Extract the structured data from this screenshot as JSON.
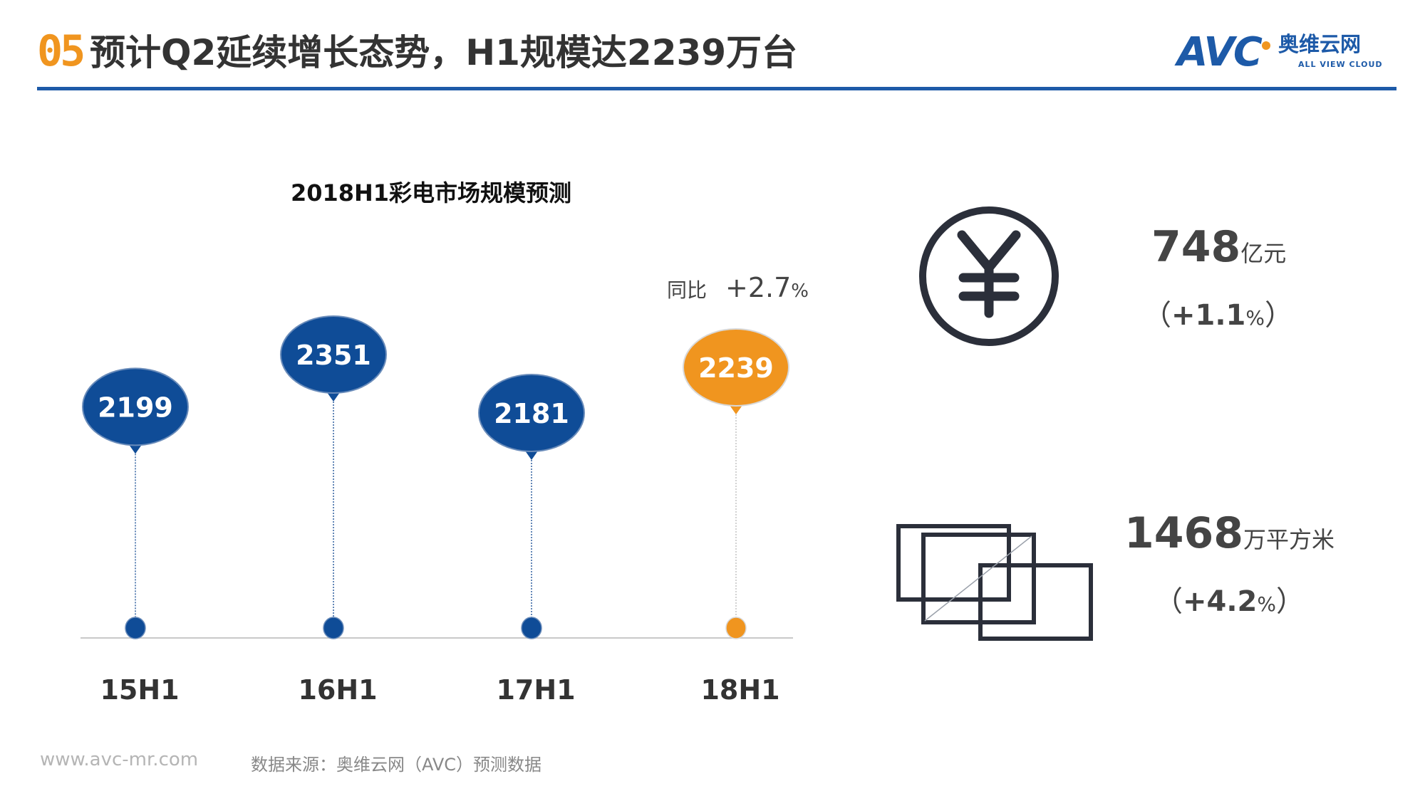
{
  "header": {
    "section_number": "05",
    "title": "预计Q2延续增长态势，H1规模达2239万台"
  },
  "logo": {
    "brand": "AVC",
    "name_cn": "奥维云网",
    "name_en": "ALL VIEW CLOUD"
  },
  "colors": {
    "accent_blue": "#0f4c97",
    "accent_orange": "#f0951f",
    "rule_blue": "#1d5aa8"
  },
  "chart_data": {
    "type": "bar",
    "title": "2018H1彩电市场规模预测",
    "categories": [
      "15H1",
      "16H1",
      "17H1",
      "18H1"
    ],
    "values": [
      2199,
      2351,
      2181,
      2239
    ],
    "highlight_index": 3,
    "annotation": {
      "label": "同比",
      "value": "+2.7",
      "unit": "%"
    }
  },
  "stats": [
    {
      "icon": "yen-icon",
      "value": "748",
      "unit": "亿元",
      "change_open": "（",
      "change_value": "+1.1",
      "change_unit": "%",
      "change_close": "）"
    },
    {
      "icon": "screens-icon",
      "value": "1468",
      "unit": "万平方米",
      "change_open": "（",
      "change_value": "+4.2",
      "change_unit": "%",
      "change_close": "）"
    }
  ],
  "footer": {
    "url": "www.avc-mr.com",
    "source": "数据来源：奥维云网（AVC）预测数据"
  }
}
